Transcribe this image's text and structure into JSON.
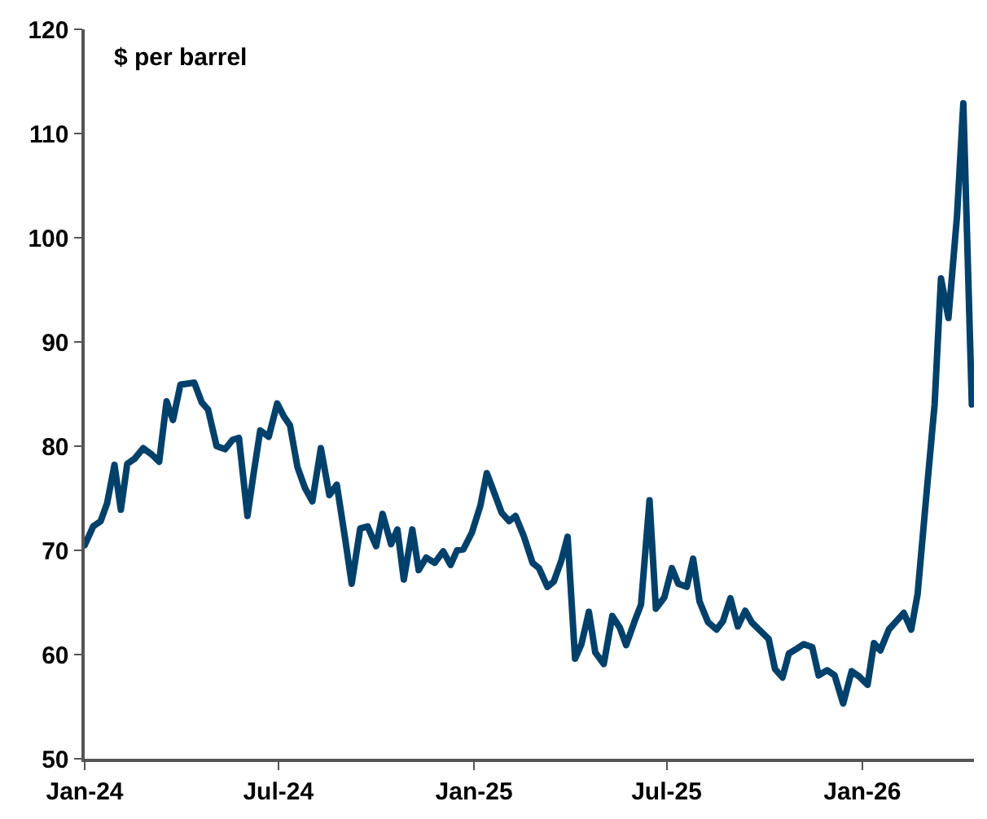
{
  "chart_data": {
    "type": "line",
    "annotations": [
      "$ per barrel"
    ],
    "x": [
      "2024-01-01",
      "2024-01-09",
      "2024-01-16",
      "2024-01-22",
      "2024-01-29",
      "2024-02-04",
      "2024-02-10",
      "2024-02-17",
      "2024-02-25",
      "2024-03-04",
      "2024-03-11",
      "2024-03-18",
      "2024-03-24",
      "2024-03-31",
      "2024-04-13",
      "2024-04-20",
      "2024-04-26",
      "2024-05-04",
      "2024-05-12",
      "2024-05-19",
      "2024-05-25",
      "2024-06-02",
      "2024-06-08",
      "2024-06-14",
      "2024-06-22",
      "2024-06-30",
      "2024-07-06",
      "2024-07-12",
      "2024-07-19",
      "2024-07-26",
      "2024-08-02",
      "2024-08-10",
      "2024-08-18",
      "2024-08-25",
      "2024-09-02",
      "2024-09-08",
      "2024-09-16",
      "2024-09-23",
      "2024-10-01",
      "2024-10-07",
      "2024-10-15",
      "2024-10-21",
      "2024-10-27",
      "2024-11-04",
      "2024-11-10",
      "2024-11-17",
      "2024-11-25",
      "2024-12-03",
      "2024-12-10",
      "2024-12-16",
      "2024-12-22",
      "2024-12-30",
      "2025-01-07",
      "2025-01-13",
      "2025-01-19",
      "2025-01-27",
      "2025-02-03",
      "2025-02-09",
      "2025-02-17",
      "2025-02-25",
      "2025-03-03",
      "2025-03-11",
      "2025-03-17",
      "2025-03-24",
      "2025-03-30",
      "2025-04-06",
      "2025-04-12",
      "2025-04-19",
      "2025-04-25",
      "2025-05-03",
      "2025-05-11",
      "2025-05-18",
      "2025-05-24",
      "2025-06-01",
      "2025-06-07",
      "2025-06-15",
      "2025-06-21",
      "2025-06-29",
      "2025-07-06",
      "2025-07-12",
      "2025-07-20",
      "2025-07-26",
      "2025-08-01",
      "2025-08-09",
      "2025-08-17",
      "2025-08-23",
      "2025-08-30",
      "2025-09-06",
      "2025-09-13",
      "2025-09-19",
      "2025-09-27",
      "2025-10-05",
      "2025-10-11",
      "2025-10-18",
      "2025-10-24",
      "2025-11-01",
      "2025-11-07",
      "2025-11-15",
      "2025-11-21",
      "2025-11-29",
      "2025-12-06",
      "2025-12-14",
      "2025-12-22",
      "2025-12-29",
      "2026-01-06",
      "2026-01-12",
      "2026-01-18",
      "2026-01-26",
      "2026-02-02",
      "2026-02-09",
      "2026-02-16",
      "2026-02-22",
      "2026-03-02",
      "2026-03-10",
      "2026-03-16",
      "2026-03-23",
      "2026-03-31",
      "2026-04-06",
      "2026-04-14"
    ],
    "series": [
      {
        "color": "#00416b",
        "values": [
          70.5,
          72.3,
          72.8,
          74.5,
          78.2,
          73.9,
          78.3,
          78.8,
          79.8,
          79.2,
          78.5,
          84.3,
          82.5,
          85.9,
          86.1,
          84.2,
          83.5,
          80,
          79.7,
          80.6,
          80.8,
          73.3,
          77.5,
          81.5,
          80.9,
          84.1,
          82.9,
          82,
          78,
          76,
          74.7,
          79.8,
          75.3,
          76.3,
          71,
          66.8,
          72.1,
          72.3,
          70.4,
          73.5,
          70.6,
          72,
          67.2,
          72,
          68.1,
          69.3,
          68.8,
          69.9,
          68.6,
          70,
          70.1,
          71.7,
          74.3,
          77.4,
          75.8,
          73.6,
          72.8,
          73.3,
          71.3,
          68.8,
          68.3,
          66.5,
          67,
          69,
          71.3,
          59.6,
          61,
          64.1,
          60.2,
          59.1,
          63.7,
          62.6,
          60.9,
          63.2,
          64.8,
          74.8,
          64.4,
          65.5,
          68.3,
          66.8,
          66.5,
          69.2,
          65.1,
          63.1,
          62.4,
          63.2,
          65.4,
          62.7,
          64.2,
          63.1,
          62.3,
          61.5,
          58.6,
          57.8,
          60.1,
          60.6,
          61,
          60.7,
          58,
          58.5,
          58,
          55.3,
          58.4,
          57.9,
          57.1,
          61.1,
          60.4,
          62.4,
          63.2,
          64,
          62.4,
          65.8,
          75,
          84,
          96.1,
          92.3,
          102,
          112.9,
          84
        ]
      }
    ],
    "xlim": [
      "2024-01-01",
      "2026-04-16"
    ],
    "xticks": [
      {
        "value": "2024-01-01",
        "label": "Jan-24"
      },
      {
        "value": "2024-07-01",
        "label": "Jul-24"
      },
      {
        "value": "2025-01-01",
        "label": "Jan-25"
      },
      {
        "value": "2025-07-01",
        "label": "Jul-25"
      },
      {
        "value": "2026-01-01",
        "label": "Jan-26"
      }
    ],
    "ylim": [
      50,
      120
    ],
    "yticks": [
      50,
      60,
      70,
      80,
      90,
      100,
      110,
      120
    ],
    "marker": "none",
    "line_style": "solid"
  }
}
